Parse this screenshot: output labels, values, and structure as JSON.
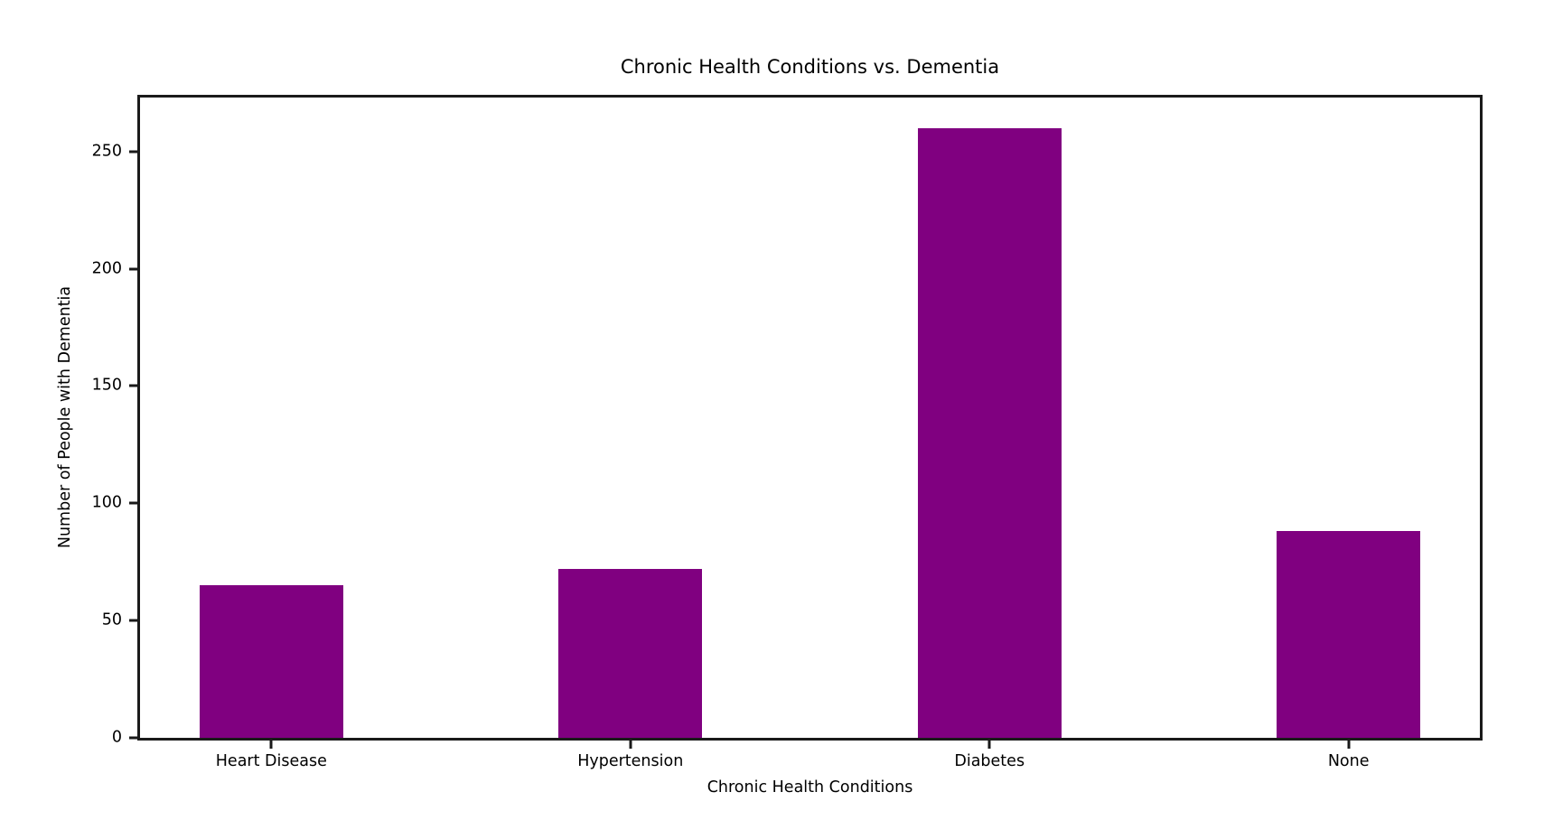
{
  "chart_data": {
    "type": "bar",
    "title": "Chronic Health Conditions vs. Dementia",
    "xlabel": "Chronic Health Conditions",
    "ylabel": "Number of People with Dementia",
    "categories": [
      "Heart Disease",
      "Hypertension",
      "Diabetes",
      "None"
    ],
    "values": [
      65,
      72,
      260,
      88
    ],
    "yticks": [
      0,
      50,
      100,
      150,
      200,
      250
    ],
    "ylim": [
      0,
      273
    ],
    "bar_color": "#800080",
    "axis_color": "#1a1a1a",
    "background_color": "#ffffff",
    "grid": false,
    "legend": "none"
  }
}
